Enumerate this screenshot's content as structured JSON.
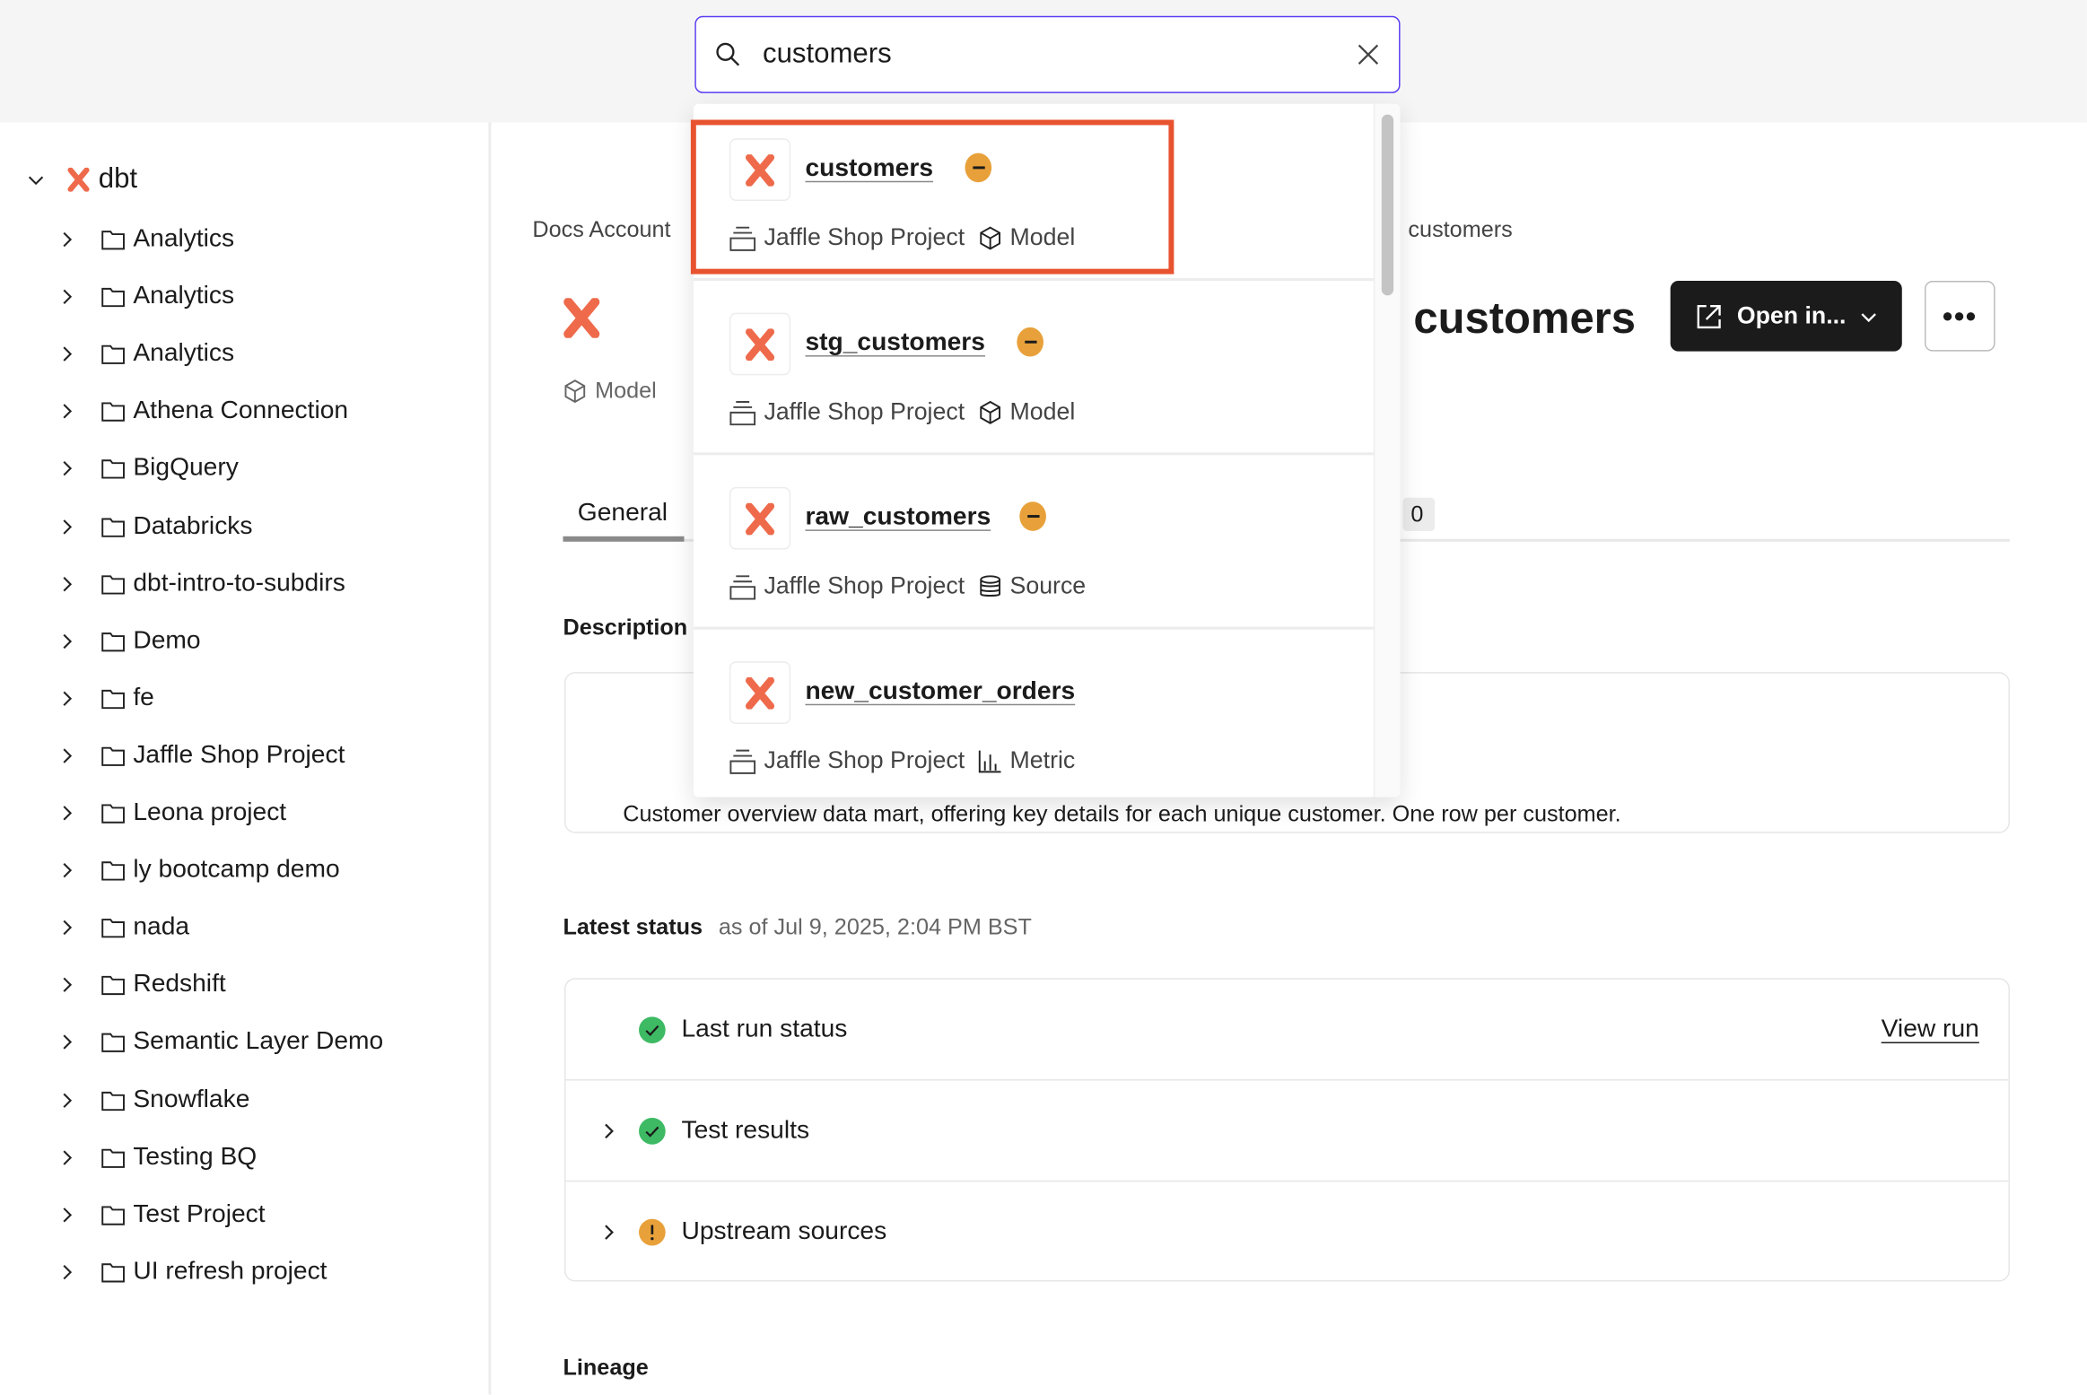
{
  "search": {
    "value": "customers",
    "placeholder": "Search"
  },
  "sidebar": {
    "root": "dbt",
    "items": [
      "Analytics",
      "Analytics",
      "Analytics",
      "Athena Connection",
      "BigQuery",
      "Databricks",
      "dbt-intro-to-subdirs",
      "Demo",
      "fe",
      "Jaffle Shop Project",
      "Leona project",
      "ly bootcamp demo",
      "nada",
      "Redshift",
      "Semantic Layer Demo",
      "Snowflake",
      "Testing BQ",
      "Test Project",
      "UI refresh project"
    ]
  },
  "breadcrumb": {
    "first": "Docs Account",
    "last": "customers"
  },
  "page": {
    "title": "customers",
    "type": "Model",
    "open_in": "Open in...",
    "more": "•••"
  },
  "tabs": {
    "general": "General",
    "count": "0"
  },
  "description": {
    "label": "Description",
    "text": "Customer overview data mart, offering key details for each unique customer. One row per customer."
  },
  "status": {
    "label": "Latest status",
    "as_of": "as of Jul 9, 2025, 2:04 PM BST",
    "rows": [
      "Last run status",
      "Test results",
      "Upstream sources"
    ],
    "view_run": "View run"
  },
  "lineage": {
    "label": "Lineage"
  },
  "results": [
    {
      "name": "customers",
      "project": "Jaffle Shop Project",
      "type": "Model",
      "icon": "cube-icon",
      "badge": true
    },
    {
      "name": "stg_customers",
      "project": "Jaffle Shop Project",
      "type": "Model",
      "icon": "cube-icon",
      "badge": true
    },
    {
      "name": "raw_customers",
      "project": "Jaffle Shop Project",
      "type": "Source",
      "icon": "database-icon",
      "badge": true
    },
    {
      "name": "new_customer_orders",
      "project": "Jaffle Shop Project",
      "type": "Metric",
      "icon": "bar-chart-icon",
      "badge": false
    }
  ],
  "colors": {
    "accent": "#5a3ff2",
    "highlight": "#e8532f",
    "dbt": "#ee6a4b",
    "success": "#3dba63",
    "warning": "#e8a13a"
  }
}
